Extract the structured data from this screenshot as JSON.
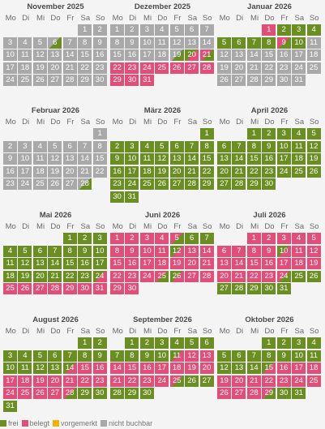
{
  "weekday_labels": [
    "Mo",
    "Di",
    "Mi",
    "Do",
    "Fr",
    "Sa",
    "So"
  ],
  "colors": {
    "frei": "#6b8e23",
    "belegt": "#e34e79",
    "vorgemerkt": "#f0b400",
    "nicht_buchbar": "#a9a9a9"
  },
  "months": [
    {
      "title": "November 2025",
      "offset": 5,
      "days": [
        "nb",
        "nb",
        "nb",
        "nb",
        "nb",
        "nbf",
        "nb",
        "nb",
        "nb",
        "nb",
        "nb",
        "nb",
        "nb",
        "nb",
        "nb",
        "nb",
        "nb",
        "nb",
        "nb",
        "nb",
        "nb",
        "nb",
        "nb",
        "nb",
        "nb",
        "nb",
        "nb",
        "nb",
        "nb",
        "nb"
      ]
    },
    {
      "title": "Dezember 2025",
      "offset": 0,
      "days": [
        "nb",
        "nb",
        "nb",
        "nb",
        "nb",
        "nb",
        "nb",
        "nb",
        "nb",
        "nb",
        "nb",
        "nb",
        "nb",
        "nb",
        "nb",
        "nb",
        "nb",
        "nb",
        "nbf",
        "arr",
        "dep",
        "belegt",
        "belegt",
        "belegt",
        "belegt",
        "belegt",
        "belegt",
        "belegt",
        "belegt",
        "belegt",
        "belegt"
      ]
    },
    {
      "title": "Januar 2026",
      "offset": 3,
      "days": [
        "belegt",
        "free",
        "free",
        "free",
        "free",
        "free",
        "free",
        "free",
        "dep",
        "free",
        "nb",
        "nb",
        "nb",
        "nb",
        "nb",
        "nb",
        "nb",
        "nb",
        "nb",
        "nb",
        "nb",
        "nb",
        "nb",
        "nb",
        "nb",
        "nb",
        "nb",
        "nb",
        "nb",
        "nb",
        "nb"
      ]
    },
    {
      "title": "Februar 2026",
      "offset": 6,
      "days": [
        "nb",
        "nb",
        "nb",
        "nb",
        "nb",
        "nb",
        "nb",
        "nb",
        "nb",
        "nb",
        "nb",
        "nb",
        "nb",
        "nb",
        "nb",
        "nb",
        "nb",
        "nb",
        "nb",
        "nb",
        "nb",
        "nb",
        "nb",
        "nb",
        "nb",
        "nb",
        "nb",
        "nbf"
      ]
    },
    {
      "title": "März 2026",
      "offset": 6,
      "days": [
        "free",
        "free",
        "free",
        "free",
        "free",
        "free",
        "free",
        "free",
        "free",
        "free",
        "free",
        "free",
        "free",
        "free",
        "free",
        "free",
        "free",
        "free",
        "free",
        "free",
        "free",
        "free",
        "free",
        "free",
        "free",
        "free",
        "free",
        "free",
        "free",
        "free",
        "free"
      ]
    },
    {
      "title": "April 2026",
      "offset": 2,
      "days": [
        "free",
        "free",
        "free",
        "free",
        "free",
        "free",
        "free",
        "free",
        "free",
        "free",
        "free",
        "free",
        "free",
        "free",
        "free",
        "free",
        "free",
        "free",
        "free",
        "free",
        "free",
        "free",
        "free",
        "free",
        "free",
        "free",
        "free",
        "free",
        "free",
        "free"
      ]
    },
    {
      "title": "Mai 2026",
      "offset": 4,
      "days": [
        "free",
        "free",
        "free",
        "free",
        "free",
        "free",
        "free",
        "free",
        "free",
        "free",
        "free",
        "free",
        "free",
        "free",
        "free",
        "free",
        "free",
        "free",
        "free",
        "free",
        "free",
        "free",
        "free",
        "arr",
        "belegt",
        "belegt",
        "belegt",
        "belegt",
        "belegt",
        "belegt",
        "belegt"
      ]
    },
    {
      "title": "Juni 2026",
      "offset": 0,
      "days": [
        "belegt",
        "belegt",
        "belegt",
        "belegt",
        "dep",
        "free",
        "free",
        "belegt",
        "belegt",
        "belegt",
        "belegt",
        "arr",
        "belegt",
        "belegt",
        "belegt",
        "belegt",
        "belegt",
        "belegt",
        "belegt",
        "belegt",
        "belegt",
        "belegt",
        "belegt",
        "belegt",
        "dep",
        "arr",
        "belegt",
        "belegt",
        "belegt",
        "belegt"
      ]
    },
    {
      "title": "Juli 2026",
      "offset": 2,
      "days": [
        "belegt",
        "belegt",
        "belegt",
        "belegt",
        "belegt",
        "belegt",
        "belegt",
        "belegt",
        "belegt",
        "arr",
        "belegt",
        "belegt",
        "belegt",
        "belegt",
        "belegt",
        "belegt",
        "belegt",
        "belegt",
        "belegt",
        "belegt",
        "belegt",
        "belegt",
        "belegt",
        "dep",
        "free",
        "free",
        "free",
        "free",
        "free",
        "free",
        "free"
      ]
    },
    {
      "title": "August 2026",
      "offset": 5,
      "days": [
        "free",
        "free",
        "free",
        "free",
        "free",
        "free",
        "free",
        "free",
        "free",
        "free",
        "free",
        "free",
        "free",
        "arr",
        "belegt",
        "belegt",
        "belegt",
        "belegt",
        "belegt",
        "belegt",
        "belegt",
        "belegt",
        "belegt",
        "belegt",
        "belegt",
        "belegt",
        "belegt",
        "dep",
        "free",
        "free",
        "free"
      ]
    },
    {
      "title": "September 2026",
      "offset": 1,
      "days": [
        "free",
        "free",
        "free",
        "free",
        "free",
        "free",
        "free",
        "free",
        "free",
        "free",
        "arr",
        "belegt",
        "belegt",
        "belegt",
        "belegt",
        "belegt",
        "belegt",
        "belegt",
        "belegt",
        "belegt",
        "belegt",
        "belegt",
        "belegt",
        "belegt",
        "dep",
        "free",
        "free",
        "free",
        "free",
        "free"
      ]
    },
    {
      "title": "Oktober 2026",
      "offset": 3,
      "days": [
        "free",
        "free",
        "free",
        "free",
        "free",
        "free",
        "free",
        "free",
        "free",
        "free",
        "free",
        "free",
        "free",
        "free",
        "arr",
        "belegt",
        "belegt",
        "belegt",
        "belegt",
        "belegt",
        "belegt",
        "belegt",
        "belegt",
        "belegt",
        "belegt",
        "belegt",
        "belegt",
        "belegt",
        "dep",
        "free",
        "free"
      ]
    }
  ],
  "legend": [
    {
      "key": "frei",
      "label": "frei",
      "color": "#6b8e23"
    },
    {
      "key": "belegt",
      "label": "belegt",
      "color": "#e34e79"
    },
    {
      "key": "vorgemerkt",
      "label": "vorgemerkt",
      "color": "#f0b400"
    },
    {
      "key": "nicht_buchbar",
      "label": "nicht buchbar",
      "color": "#a9a9a9"
    }
  ]
}
